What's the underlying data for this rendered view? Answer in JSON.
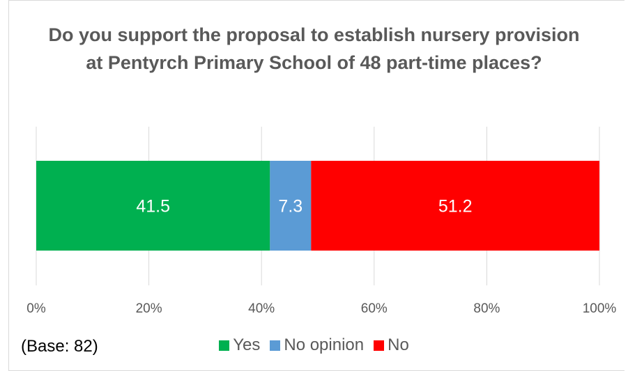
{
  "chart_data": {
    "type": "bar",
    "orientation": "horizontal-stacked",
    "title": "Do you support the proposal to establish nursery provision at Pentyrch Primary School of 48 part-time places?",
    "series": [
      {
        "name": "Yes",
        "value": 41.5,
        "label": "41.5",
        "color": "#00b050"
      },
      {
        "name": "No opinion",
        "value": 7.3,
        "label": "7.3",
        "color": "#5b9bd5"
      },
      {
        "name": "No",
        "value": 51.2,
        "label": "51.2",
        "color": "#ff0000"
      }
    ],
    "xlim": [
      0,
      100
    ],
    "xticks": [
      "0%",
      "20%",
      "40%",
      "60%",
      "80%",
      "100%"
    ],
    "grid": true,
    "legend_position": "bottom"
  },
  "note": "(Base: 82)"
}
